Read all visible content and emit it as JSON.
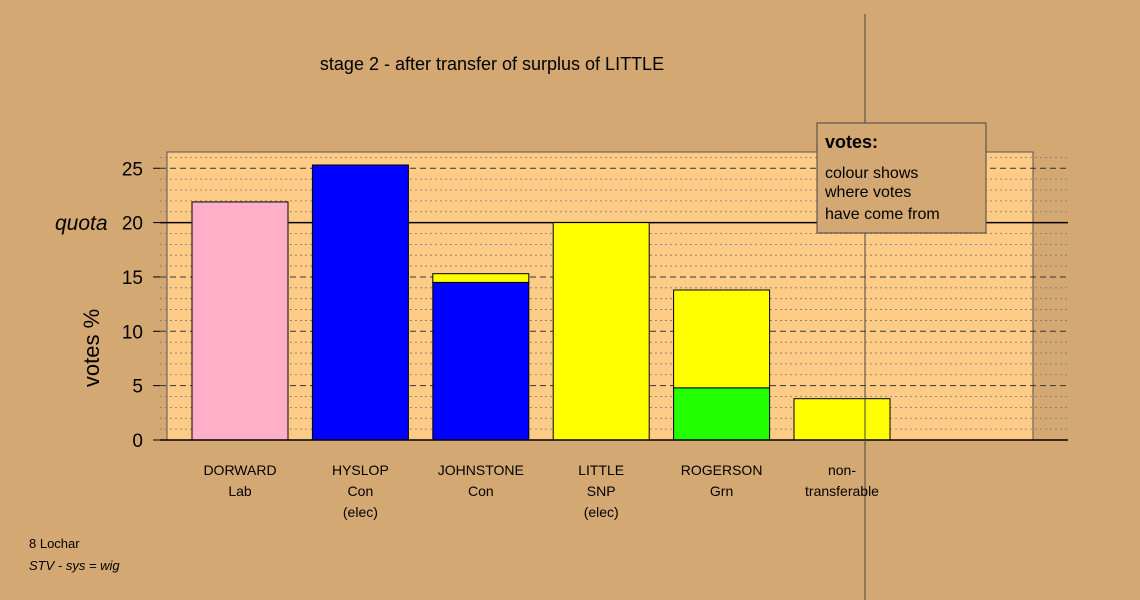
{
  "chart_data": {
    "type": "bar",
    "title": "stage 2 - after transfer of surplus of LITTLE",
    "ylabel": "votes %",
    "ylim": [
      0,
      26.5
    ],
    "yticks": [
      0,
      5,
      10,
      15,
      20,
      25
    ],
    "quota": {
      "label": "quota",
      "value": 20
    },
    "grid": "dashed at 5, dotted minor lines",
    "categories": [
      {
        "lines": [
          "DORWARD",
          "Lab"
        ]
      },
      {
        "lines": [
          "HYSLOP",
          "Con",
          "(elec)"
        ]
      },
      {
        "lines": [
          "JOHNSTONE",
          "Con"
        ]
      },
      {
        "lines": [
          "LITTLE",
          "SNP",
          "(elec)"
        ]
      },
      {
        "lines": [
          "ROGERSON",
          "Grn"
        ]
      },
      {
        "lines": [
          "non-",
          "transferable"
        ]
      }
    ],
    "bars": [
      {
        "segments": [
          {
            "value": 21.9,
            "color": "#ffb0c8"
          }
        ]
      },
      {
        "segments": [
          {
            "value": 25.3,
            "color": "#0000ff"
          }
        ]
      },
      {
        "segments": [
          {
            "value": 14.5,
            "color": "#0000ff"
          },
          {
            "value": 0.8,
            "color": "#ffff00"
          }
        ]
      },
      {
        "segments": [
          {
            "value": 20.0,
            "color": "#ffff00"
          }
        ]
      },
      {
        "segments": [
          {
            "value": 4.8,
            "color": "#22ff00"
          },
          {
            "value": 9.0,
            "color": "#ffff00"
          }
        ]
      },
      {
        "segments": [
          {
            "value": 3.8,
            "color": "#ffff00"
          }
        ]
      }
    ],
    "legend": {
      "title": "votes:",
      "lines": [
        "colour shows",
        "where votes",
        "have come from"
      ],
      "placement": "top-right"
    }
  },
  "footer": {
    "line1": "8 Lochar",
    "line2": "STV - sys = wig"
  },
  "colors": {
    "background": "#d4a873",
    "plot_area": "#ffcc88",
    "legend_box": "#d4a873"
  }
}
